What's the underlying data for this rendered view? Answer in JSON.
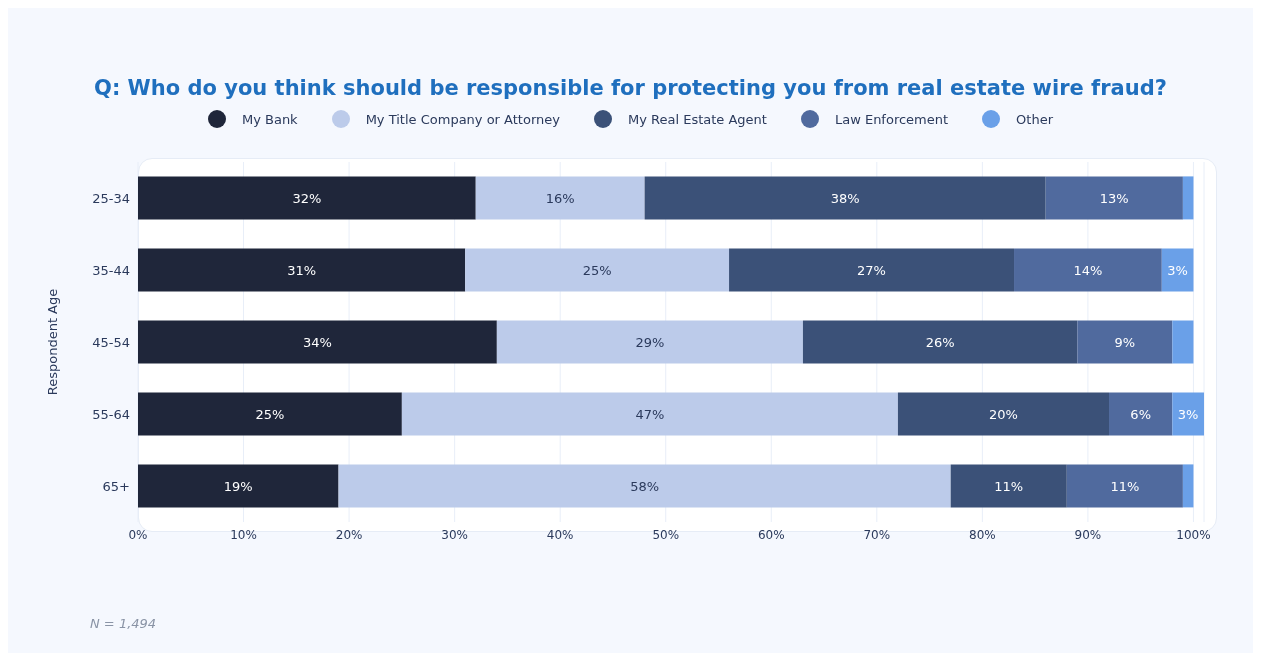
{
  "chart_data": {
    "type": "bar",
    "orientation": "horizontal",
    "stacked": true,
    "title": "Q: Who do you think should be responsible for protecting you from real estate wire fraud?",
    "ylabel": "Respondent Age",
    "categories": [
      "25-34",
      "35-44",
      "45-54",
      "55-64",
      "65+"
    ],
    "series": [
      {
        "name": "My Bank",
        "color": "#1f263a",
        "values": [
          32,
          31,
          34,
          25,
          19
        ],
        "value_labels": [
          "32%",
          "31%",
          "34%",
          "25%",
          "19%"
        ]
      },
      {
        "name": "My Title Company or Attorney",
        "color": "#bccbea",
        "values": [
          16,
          25,
          29,
          47,
          58
        ],
        "value_labels": [
          "16%",
          "25%",
          "29%",
          "47%",
          "58%"
        ]
      },
      {
        "name": "My Real Estate Agent",
        "color": "#3b5178",
        "values": [
          38,
          27,
          26,
          20,
          11
        ],
        "value_labels": [
          "38%",
          "27%",
          "26%",
          "20%",
          "11%"
        ]
      },
      {
        "name": "Law Enforcement",
        "color": "#506a9e",
        "values": [
          13,
          14,
          9,
          6,
          11
        ],
        "value_labels": [
          "13%",
          "14%",
          "9%",
          "6%",
          "11%"
        ]
      },
      {
        "name": "Other",
        "color": "#6aa0e8",
        "values": [
          1,
          3,
          2,
          3,
          1
        ],
        "value_labels": [
          null,
          "3%",
          null,
          "3%",
          null
        ]
      }
    ],
    "xlim": [
      0,
      101
    ],
    "xticks": [
      {
        "value": 0,
        "label": "0%"
      },
      {
        "value": 10,
        "label": "10%"
      },
      {
        "value": 20,
        "label": "20%"
      },
      {
        "value": 30,
        "label": "30%"
      },
      {
        "value": 40,
        "label": "40%"
      },
      {
        "value": 50,
        "label": "50%"
      },
      {
        "value": 60,
        "label": "60%"
      },
      {
        "value": 70,
        "label": "70%"
      },
      {
        "value": 80,
        "label": "80%"
      },
      {
        "value": 90,
        "label": "90%"
      },
      {
        "value": 100,
        "label": "100%"
      }
    ],
    "grid": "x",
    "legend": "top",
    "annotations": [
      "N = 1,494"
    ]
  }
}
